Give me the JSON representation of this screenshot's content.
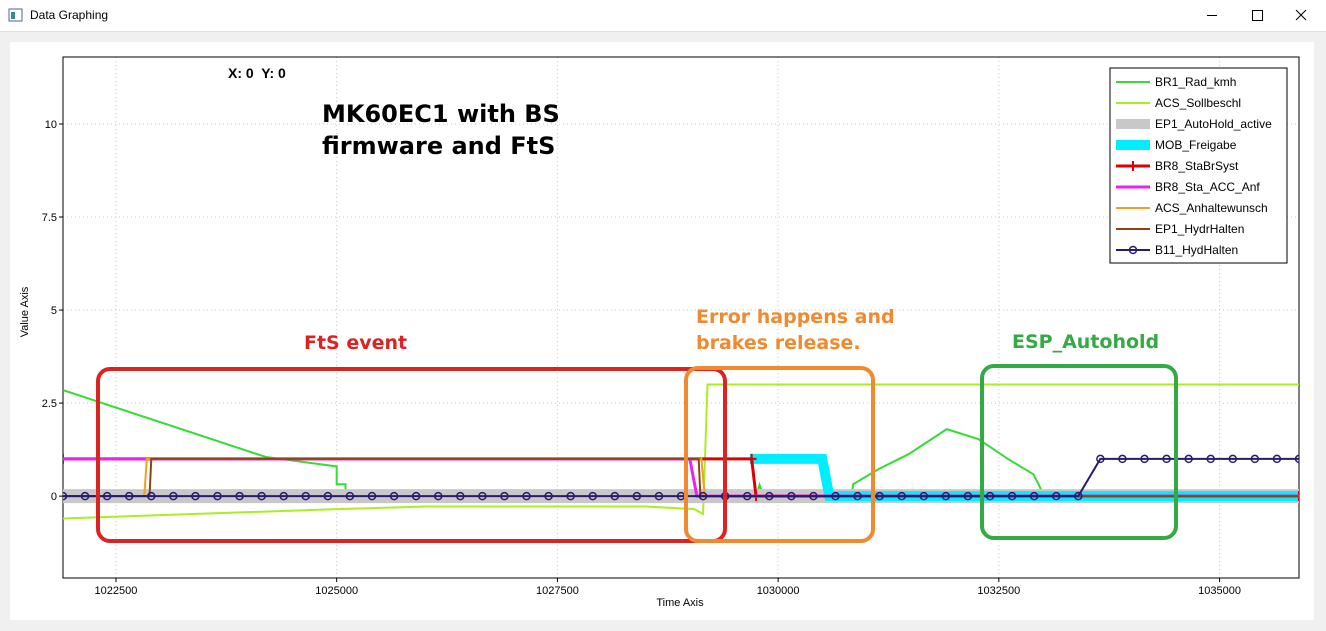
{
  "window": {
    "title": "Data Graphing"
  },
  "chart_data": {
    "type": "line",
    "x_label": "Time Axis",
    "y_label": "Value Axis",
    "coordinate_readout": "X: 0  Y: 0",
    "annotations": [
      "MK60EC1 with BS firmware and FtS",
      "FtS event",
      "Error happens and brakes release.",
      "ESP_Autohold"
    ],
    "xlim": [
      1021900,
      1035900
    ],
    "ylim": [
      -2.2,
      11.8
    ],
    "xticks": [
      1022500,
      1025000,
      1027500,
      1030000,
      1032500,
      1035000
    ],
    "yticks": [
      0,
      2.5,
      5,
      7.5,
      10
    ],
    "grid": true,
    "legend": "top-right",
    "series": [
      {
        "name": "BR1_Rad_kmh",
        "color": "#33dd33",
        "line_width": 2,
        "x": [
          1021900,
          1024200,
          1024900,
          1025000,
          1025000,
          1025100,
          1025100,
          1029750,
          1029790,
          1029830,
          1030830,
          1030850,
          1031140,
          1031480,
          1031910,
          1032270,
          1032610,
          1032890,
          1032950,
          1033010,
          1035900
        ],
        "values": [
          2.85,
          1.05,
          0.83,
          0.8,
          0.32,
          0.32,
          0,
          0,
          0.3,
          0,
          0,
          0.32,
          0.73,
          1.13,
          1.8,
          1.53,
          0.99,
          0.59,
          0.32,
          0,
          0
        ]
      },
      {
        "name": "ACS_Sollbeschl",
        "color": "#aaee22",
        "line_width": 2,
        "x": [
          1021900,
          1025000,
          1026000,
          1028500,
          1029050,
          1029150,
          1029200,
          1035900
        ],
        "values": [
          -0.6,
          -0.35,
          -0.28,
          -0.28,
          -0.35,
          -0.48,
          3.0,
          3.0
        ]
      },
      {
        "name": "EP1_AutoHold_active",
        "color": "#c8c8c8",
        "line_width": 14,
        "x": [
          1021900,
          1035900
        ],
        "values": [
          0,
          0
        ]
      },
      {
        "name": "MOB_Freigabe",
        "color": "#00eeff",
        "line_width": 10,
        "x": [
          1029680,
          1030500,
          1030580,
          1035900
        ],
        "values": [
          1,
          1,
          0,
          0
        ]
      },
      {
        "name": "BR8_StaBrSyst",
        "color": "#dd0000",
        "line_width": 3,
        "marker": "plus",
        "x": [
          1021900,
          1029700,
          1029750,
          1035900
        ],
        "values": [
          1,
          1,
          0,
          0
        ]
      },
      {
        "name": "BR8_Sta_ACC_Anf",
        "color": "#ee22ee",
        "line_width": 3,
        "x": [
          1021900,
          1029000,
          1029080,
          1035900
        ],
        "values": [
          1,
          1,
          0,
          0
        ]
      },
      {
        "name": "ACS_Anhaltewunsch",
        "color": "#f0a020",
        "line_width": 2,
        "x": [
          1021900,
          1022820,
          1022850,
          1029130,
          1029170,
          1035900
        ],
        "values": [
          0,
          0,
          1,
          1,
          0,
          0
        ]
      },
      {
        "name": "EP1_HydrHalten",
        "color": "#8b4513",
        "line_width": 2,
        "x": [
          1021900,
          1022880,
          1022900,
          1029100,
          1029120,
          1035900
        ],
        "values": [
          0,
          0,
          1,
          1,
          0,
          0
        ]
      },
      {
        "name": "B11_HydHalten",
        "color": "#2a1a6e",
        "line_width": 2,
        "marker": "circle",
        "x": [
          1021900,
          1022150,
          1022400,
          1022650,
          1022900,
          1023150,
          1023400,
          1023650,
          1023900,
          1024150,
          1024400,
          1024650,
          1024900,
          1025150,
          1025400,
          1025650,
          1025900,
          1026150,
          1026400,
          1026650,
          1026900,
          1027150,
          1027400,
          1027650,
          1027900,
          1028150,
          1028400,
          1028650,
          1028900,
          1029150,
          1029400,
          1029650,
          1029900,
          1030150,
          1030400,
          1030650,
          1030900,
          1031150,
          1031400,
          1031650,
          1031900,
          1032150,
          1032400,
          1032650,
          1032900,
          1033150,
          1033400,
          1033650,
          1033900,
          1034150,
          1034400,
          1034650,
          1034900,
          1035150,
          1035400,
          1035650,
          1035900
        ],
        "values": [
          0,
          0,
          0,
          0,
          0,
          0,
          0,
          0,
          0,
          0,
          0,
          0,
          0,
          0,
          0,
          0,
          0,
          0,
          0,
          0,
          0,
          0,
          0,
          0,
          0,
          0,
          0,
          0,
          0,
          0,
          0,
          0,
          0,
          0,
          0,
          0,
          0,
          0,
          0,
          0,
          0,
          0,
          0,
          0,
          0,
          0,
          0,
          1,
          1,
          1,
          1,
          1,
          1,
          1,
          1,
          1,
          1
        ]
      }
    ]
  }
}
